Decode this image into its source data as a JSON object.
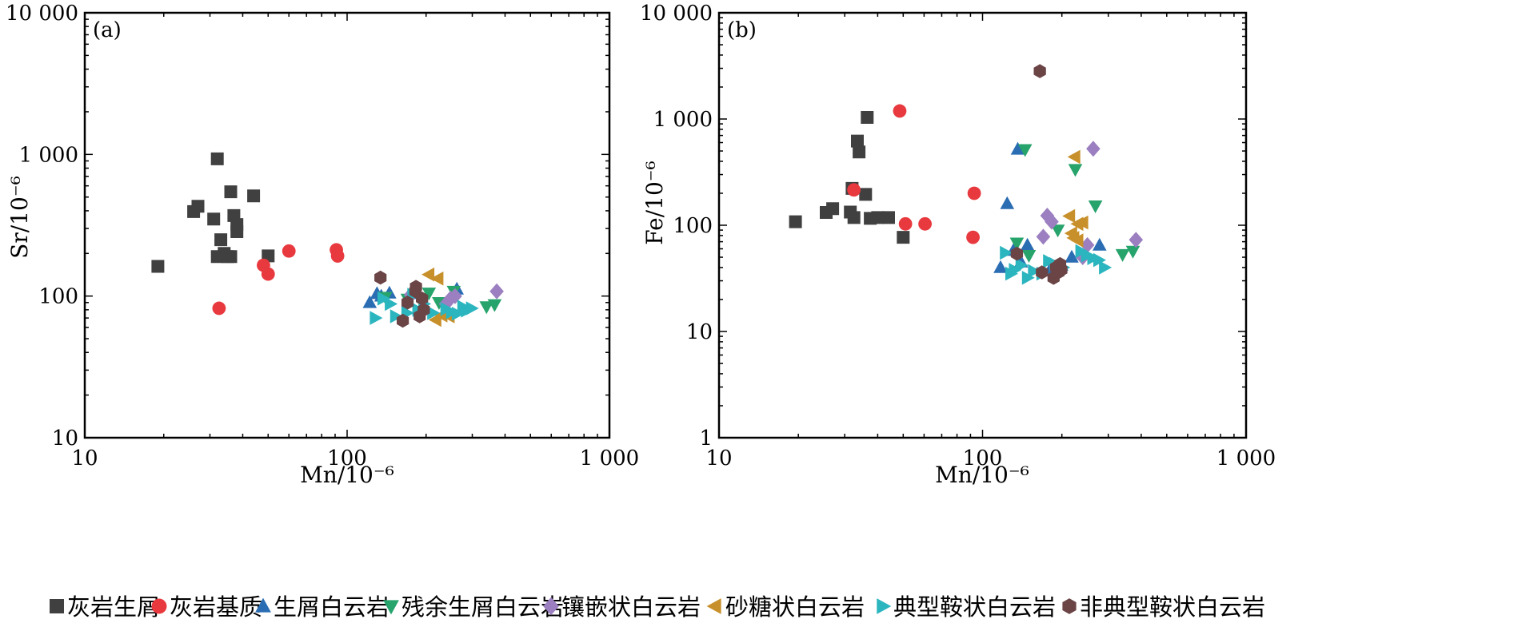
{
  "chart_data": [
    {
      "type": "scatter",
      "panel_label": "(a)",
      "xlabel": "Mn/10⁻⁶",
      "ylabel": "Sr/10⁻⁶",
      "xscale": "log",
      "yscale": "log",
      "xlim": [
        10,
        1000
      ],
      "ylim": [
        10,
        10000
      ],
      "xticks": [
        {
          "value": 10,
          "label": "10"
        },
        {
          "value": 100,
          "label": "100"
        },
        {
          "value": 1000,
          "label": "1 000"
        }
      ],
      "yticks": [
        {
          "value": 10,
          "label": "10"
        },
        {
          "value": 100,
          "label": "100"
        },
        {
          "value": 1000,
          "label": "1 000"
        },
        {
          "value": 10000,
          "label": "10 000"
        }
      ],
      "series": [
        {
          "name": "灰岩生屑",
          "x": [
            19,
            26,
            27,
            31,
            32,
            32,
            33,
            34,
            35,
            36,
            36,
            37,
            38,
            38,
            44,
            50
          ],
          "y": [
            162,
            395,
            430,
            350,
            930,
            190,
            250,
            200,
            190,
            545,
            190,
            370,
            285,
            320,
            510,
            192
          ]
        },
        {
          "name": "灰岩基质",
          "x": [
            32.5,
            48,
            50,
            60,
            91,
            92
          ],
          "y": [
            82,
            165,
            143,
            208,
            212,
            192
          ]
        },
        {
          "name": "生屑白云岩",
          "x": [
            122,
            130,
            135,
            145,
            180,
            262
          ],
          "y": [
            90,
            104,
            100,
            105,
            104,
            112
          ]
        },
        {
          "name": "残余生屑白云岩",
          "x": [
            140,
            170,
            205,
            224,
            255,
            340,
            365
          ],
          "y": [
            98,
            95,
            105,
            90,
            108,
            84,
            87
          ]
        },
        {
          "name": "镶嵌状白云岩",
          "x": [
            175,
            238,
            248,
            258,
            372
          ],
          "y": [
            102,
            88,
            96,
            100,
            108
          ]
        },
        {
          "name": "砂糖状白云岩",
          "x": [
            205,
            222,
            218,
            230,
            245
          ],
          "y": [
            142,
            133,
            68,
            73,
            72
          ]
        },
        {
          "name": "典型鞍状白云岩",
          "x": [
            128,
            137,
            146,
            153,
            169,
            178,
            186,
            196,
            212,
            238,
            250,
            263,
            276,
            285,
            298
          ],
          "y": [
            70,
            96,
            88,
            72,
            76,
            102,
            80,
            88,
            76,
            81,
            77,
            75,
            84,
            79,
            82
          ]
        },
        {
          "name": "非典型鞍状白云岩",
          "x": [
            134,
            163,
            170,
            183,
            189,
            193,
            196,
            182
          ],
          "y": [
            135,
            67,
            90,
            116,
            72,
            96,
            80,
            108
          ]
        }
      ]
    },
    {
      "type": "scatter",
      "panel_label": "(b)",
      "xlabel": "Mn/10⁻⁶",
      "ylabel": "Fe/10⁻⁶",
      "xscale": "log",
      "yscale": "log",
      "xlim": [
        10,
        1000
      ],
      "ylim": [
        1,
        10000
      ],
      "xticks": [
        {
          "value": 10,
          "label": "10"
        },
        {
          "value": 100,
          "label": "100"
        },
        {
          "value": 1000,
          "label": "1 000"
        }
      ],
      "yticks": [
        {
          "value": 1,
          "label": "1"
        },
        {
          "value": 10,
          "label": "10"
        },
        {
          "value": 100,
          "label": "100"
        },
        {
          "value": 1000,
          "label": "1 000"
        },
        {
          "value": 10000,
          "label": "10 000"
        }
      ],
      "series": [
        {
          "name": "灰岩生屑",
          "x": [
            19.5,
            25.5,
            27,
            31.5,
            32,
            32.5,
            33.5,
            34,
            36,
            36.5,
            37.5,
            40,
            44,
            50
          ],
          "y": [
            108,
            132,
            143,
            133,
            222,
            118,
            620,
            490,
            195,
            1035,
            116,
            118,
            118,
            77
          ]
        },
        {
          "name": "灰岩基质",
          "x": [
            32.5,
            48.5,
            51,
            60.5,
            92,
            93
          ],
          "y": [
            215,
            1190,
            103,
            103,
            77,
            200
          ]
        },
        {
          "name": "生屑白云岩",
          "x": [
            117,
            124,
            131,
            136,
            140,
            148,
            180,
            199,
            218,
            278
          ],
          "y": [
            40,
            160,
            58,
            520,
            45,
            65,
            38,
            42,
            50,
            65
          ]
        },
        {
          "name": "残余生屑白云岩",
          "x": [
            135,
            145,
            150,
            193,
            225,
            268,
            340,
            372
          ],
          "y": [
            68,
            515,
            52,
            90,
            335,
            152,
            53,
            57
          ]
        },
        {
          "name": "镶嵌状白云岩",
          "x": [
            170,
            176,
            183,
            240,
            250,
            263,
            382
          ],
          "y": [
            78,
            123,
            108,
            50,
            65,
            525,
            73
          ]
        },
        {
          "name": "砂糖状白云岩",
          "x": [
            214,
            224,
            230,
            240,
            222,
            218,
            230
          ],
          "y": [
            122,
            440,
            103,
            106,
            76,
            84,
            72
          ]
        },
        {
          "name": "典型鞍状白云岩",
          "x": [
            122,
            128,
            132,
            140,
            148,
            156,
            168,
            178,
            188,
            202,
            236,
            248,
            262,
            276,
            290
          ],
          "y": [
            55,
            35,
            38,
            42,
            32,
            37,
            35,
            46,
            43,
            40,
            57,
            52,
            49,
            47,
            40
          ]
        },
        {
          "name": "非典型鞍状白云岩",
          "x": [
            135,
            165,
            168,
            186,
            190,
            194,
            197,
            199
          ],
          "y": [
            54,
            2820,
            36,
            32,
            40,
            36,
            43,
            38
          ]
        }
      ]
    }
  ],
  "legend": {
    "items": [
      {
        "label": "灰岩生屑",
        "marker": "square",
        "color": "#404040"
      },
      {
        "label": "灰岩基质",
        "marker": "circle",
        "color": "#e8393f"
      },
      {
        "label": "生屑白云岩",
        "marker": "triangle-up",
        "color": "#2a6db3"
      },
      {
        "label": "残余生屑白云岩",
        "marker": "triangle-down",
        "color": "#27a36c"
      },
      {
        "label": "镶嵌状白云岩",
        "marker": "diamond",
        "color": "#9b7fc0"
      },
      {
        "label": "砂糖状白云岩",
        "marker": "triangle-left",
        "color": "#c8902a"
      },
      {
        "label": "典型鞍状白云岩",
        "marker": "triangle-right",
        "color": "#2bb5bf"
      },
      {
        "label": "非典型鞍状白云岩",
        "marker": "hexagon",
        "color": "#6b4446"
      }
    ]
  }
}
